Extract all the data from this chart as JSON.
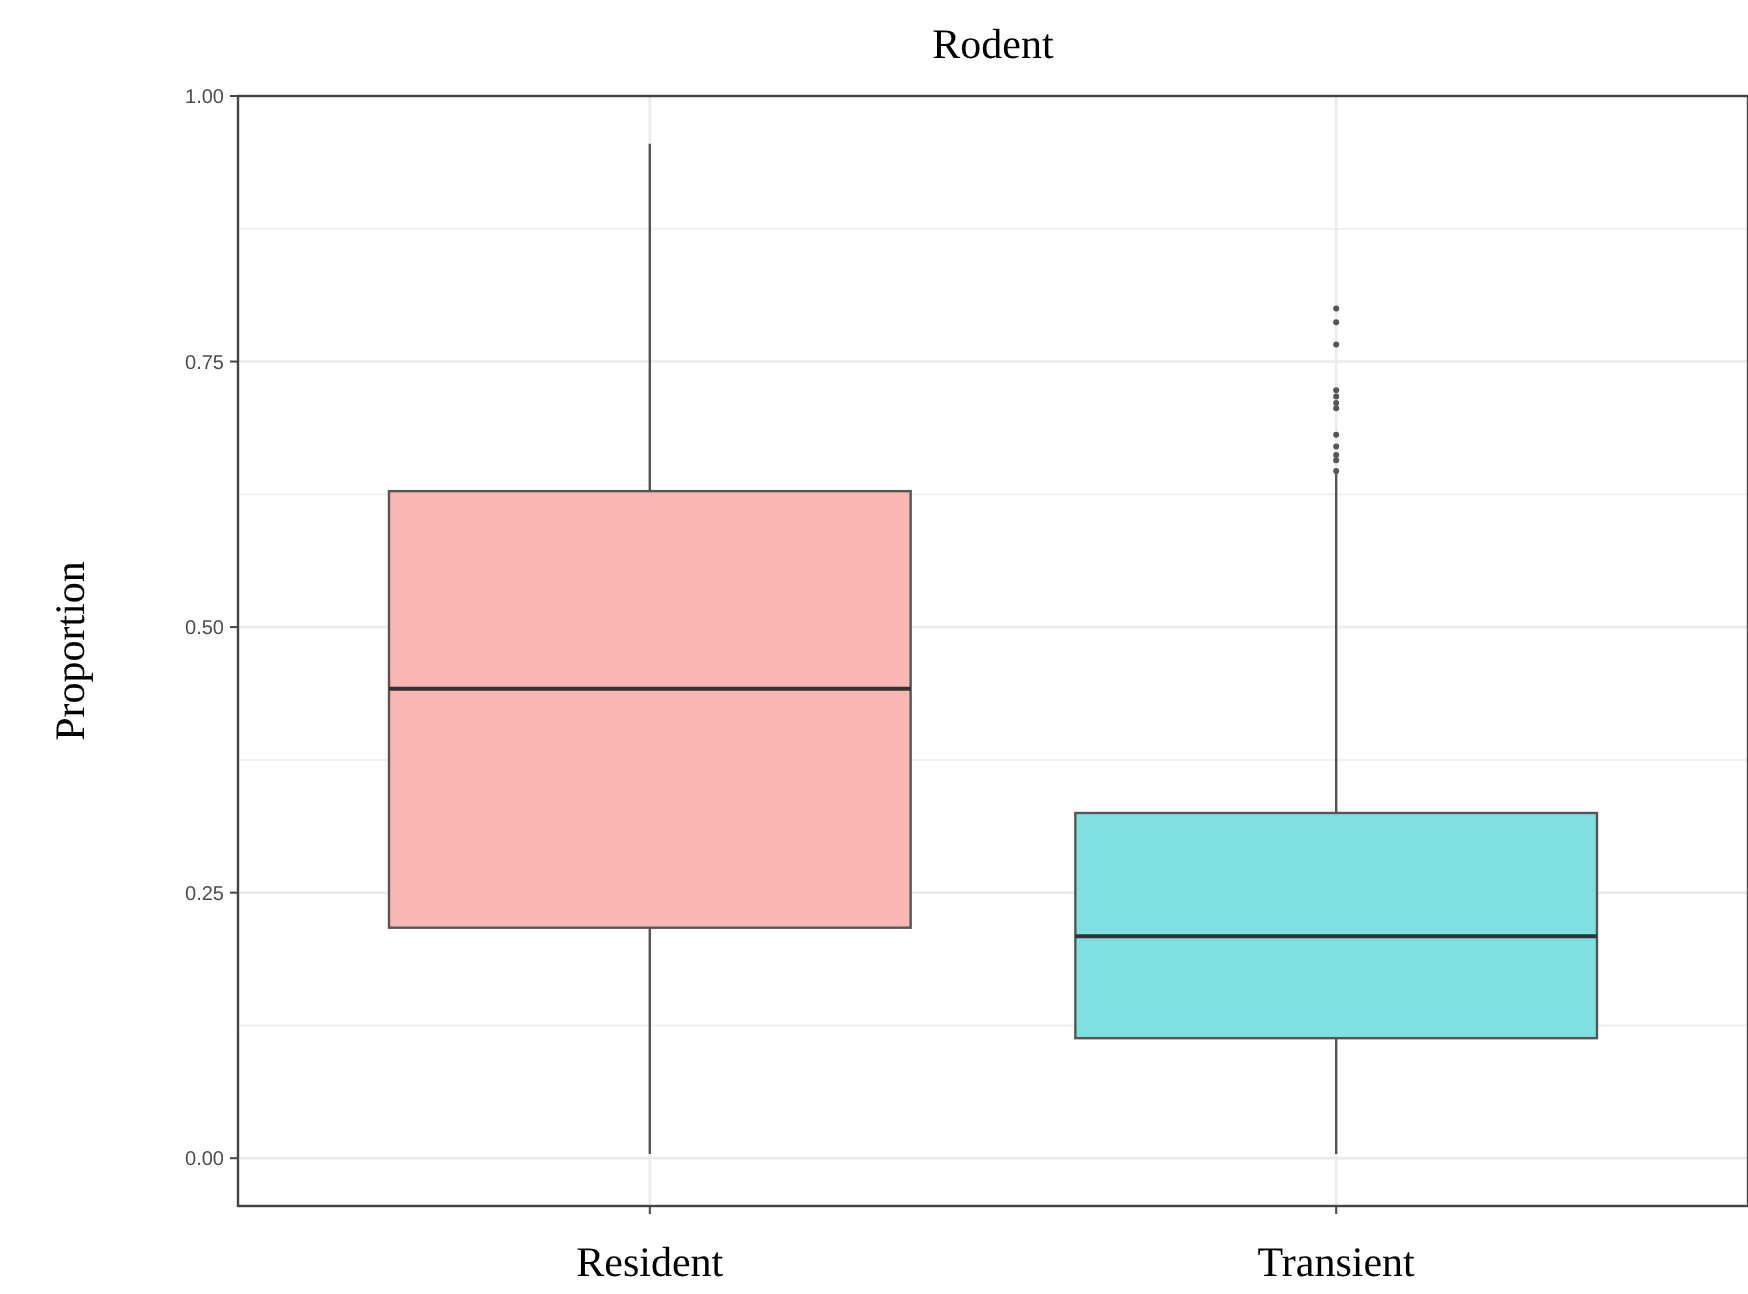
{
  "chart_data": {
    "type": "box",
    "title": "Rodent",
    "ylabel": "Proportion",
    "categories": [
      "Resident",
      "Transient"
    ],
    "colors": [
      "#f9b7b4",
      "#7fdfe1"
    ],
    "boxes": [
      {
        "low": 0.004,
        "q1": 0.217,
        "median": 0.442,
        "q3": 0.628,
        "high": 0.955
      },
      {
        "low": 0.004,
        "q1": 0.113,
        "median": 0.209,
        "q3": 0.325,
        "high": 0.645,
        "outliers": [
          0.8,
          0.787,
          0.766,
          0.723,
          0.717,
          0.711,
          0.706,
          0.681,
          0.67,
          0.662,
          0.657,
          0.647
        ]
      }
    ],
    "ylim": [
      -0.045,
      1.0
    ],
    "yticks": [
      {
        "value": 0,
        "label": "0.00"
      },
      {
        "value": 0.25,
        "label": "0.25"
      },
      {
        "value": 0.5,
        "label": "0.50"
      },
      {
        "value": 0.75,
        "label": "0.75"
      },
      {
        "value": 1,
        "label": "1.00"
      }
    ],
    "grid": true
  }
}
